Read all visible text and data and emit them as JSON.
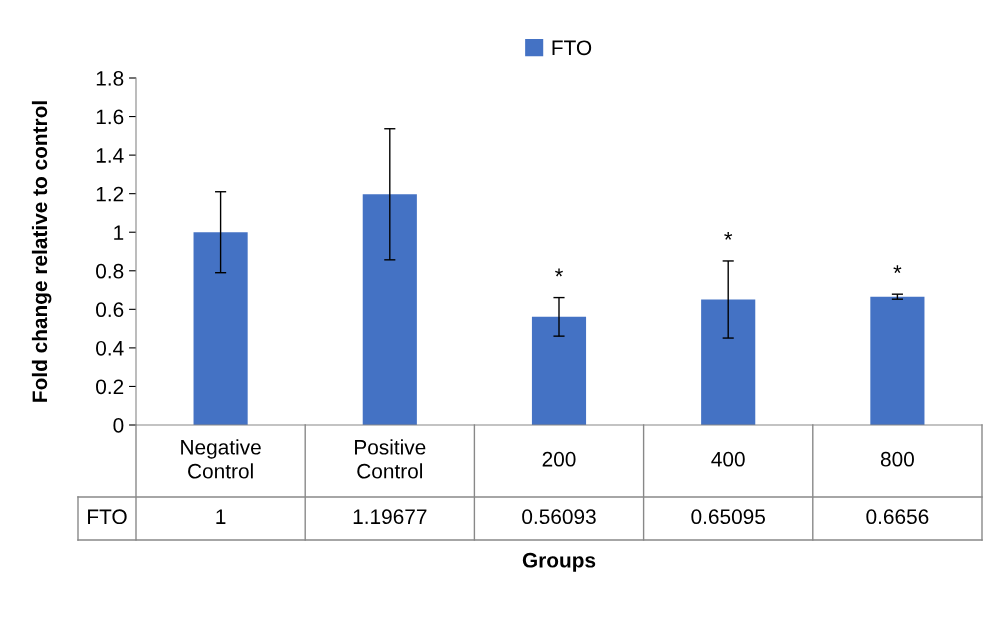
{
  "chart_data": {
    "type": "bar",
    "ylabel": "Fold change relative to control",
    "xlabel": "Groups",
    "categories": [
      "Negative Control",
      "Positive Control",
      "200",
      "400",
      "800"
    ],
    "series": [
      {
        "name": "FTO",
        "color": "#4472c4",
        "values": [
          1,
          1.19677,
          0.56093,
          0.65095,
          0.6656
        ],
        "errors": [
          0.21,
          0.34,
          0.1,
          0.2,
          0.013
        ]
      }
    ],
    "ylim": [
      0,
      1.8
    ],
    "yticks": [
      0,
      0.2,
      0.4,
      0.6,
      0.8,
      1,
      1.2,
      1.4,
      1.6,
      1.8
    ],
    "grid": false,
    "legend": "top",
    "data_labels": true,
    "annotations": [
      {
        "text": "*",
        "x": "200",
        "y": 0.56093
      },
      {
        "text": "*",
        "x": "400",
        "y": 0.65095
      },
      {
        "text": "*",
        "x": "800",
        "y": 0.6656
      }
    ]
  }
}
